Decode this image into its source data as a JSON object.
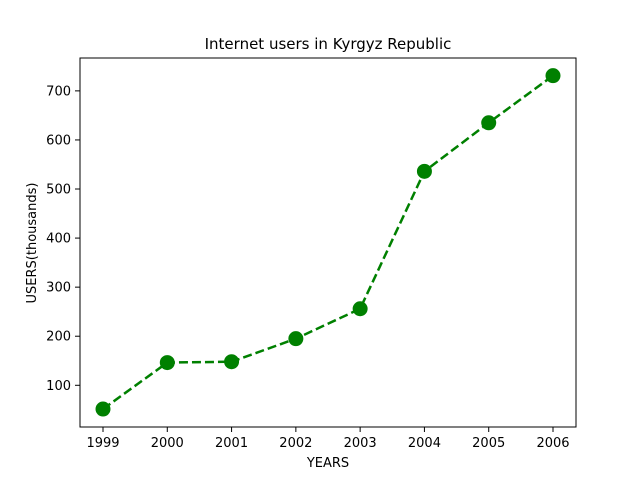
{
  "chart_data": {
    "type": "line",
    "title": "Internet users in Kyrgyz Republic",
    "xlabel": "YEARS",
    "ylabel": "USERS(thousands)",
    "x": [
      "1999",
      "2000",
      "2001",
      "2002",
      "2003",
      "2004",
      "2005",
      "2006"
    ],
    "series": [
      {
        "values": [
          51.6,
          146.3,
          148,
          195,
          256,
          536,
          635,
          731
        ]
      }
    ],
    "yticks": [
      100,
      200,
      300,
      400,
      500,
      600,
      700
    ],
    "ylim": [
      15,
      767
    ],
    "grid": false,
    "line_style": "dashed",
    "marker": "circle",
    "colors": {
      "series": "#008000",
      "axes": "#000000",
      "background": "#ffffff"
    }
  }
}
